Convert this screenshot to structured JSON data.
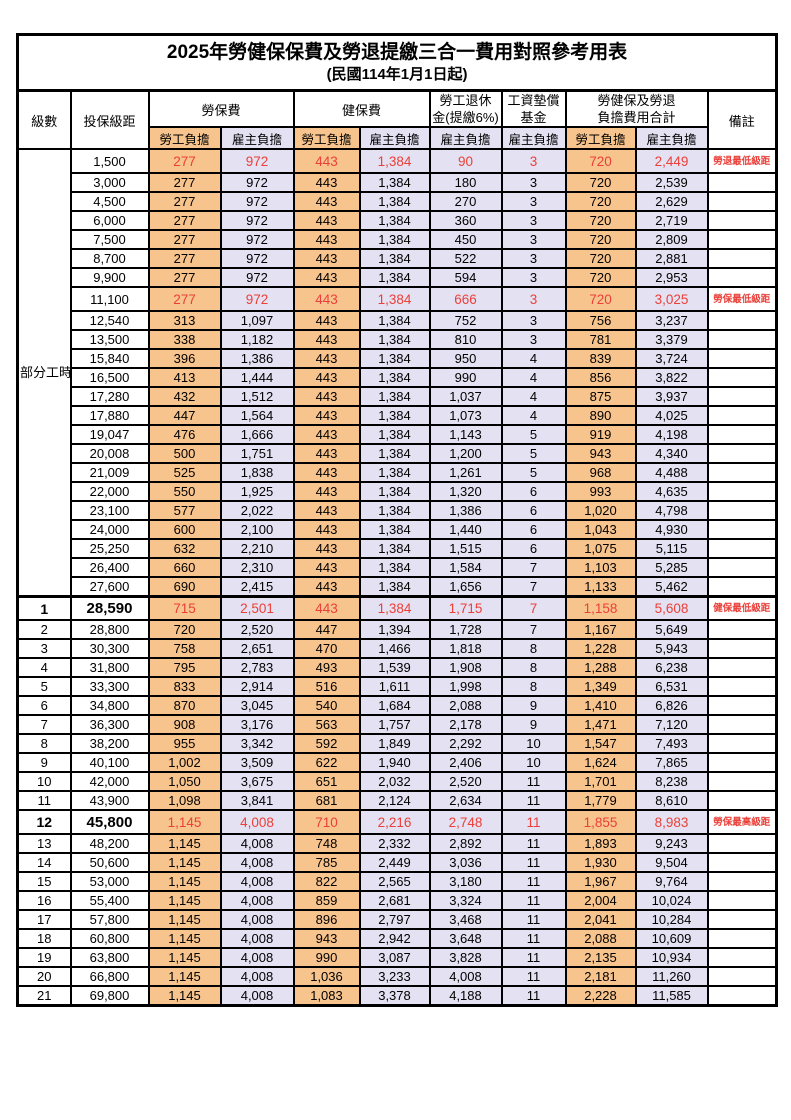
{
  "title": "2025年勞健保保費及勞退提繳三合一費用對照參考用表",
  "subtitle": "(民國114年1月1日起)",
  "colors": {
    "worker_bg": "#f8c48e",
    "employer_bg": "#e4e1f2",
    "highlight_red": "#ea4039",
    "border": "#000000"
  },
  "header": {
    "level": "級數",
    "bracket": "投保級距",
    "labor_insurance": "勞保費",
    "health_insurance": "健保費",
    "pension_line1": "勞工退休",
    "pension_line2": "金(提繳6%)",
    "wage_fund_line1": "工資墊償",
    "wage_fund_line2": "基金",
    "total_line1": "勞健保及勞退",
    "total_line2": "負擔費用合計",
    "remark": "備註",
    "worker": "勞工負擔",
    "employer": "雇主負擔"
  },
  "part_time_label": "部分工時",
  "part_time_rowspan": 23,
  "rows": [
    {
      "level": "",
      "bracket": "1,500",
      "cells": [
        "277",
        "972",
        "443",
        "1,384",
        "90",
        "3",
        "720",
        "2,449"
      ],
      "remark": "勞退最低級距",
      "red": true,
      "emph": false,
      "section": false
    },
    {
      "level": "",
      "bracket": "3,000",
      "cells": [
        "277",
        "972",
        "443",
        "1,384",
        "180",
        "3",
        "720",
        "2,539"
      ],
      "remark": "",
      "red": false,
      "emph": false,
      "section": false
    },
    {
      "level": "",
      "bracket": "4,500",
      "cells": [
        "277",
        "972",
        "443",
        "1,384",
        "270",
        "3",
        "720",
        "2,629"
      ],
      "remark": "",
      "red": false,
      "emph": false,
      "section": false
    },
    {
      "level": "",
      "bracket": "6,000",
      "cells": [
        "277",
        "972",
        "443",
        "1,384",
        "360",
        "3",
        "720",
        "2,719"
      ],
      "remark": "",
      "red": false,
      "emph": false,
      "section": false
    },
    {
      "level": "",
      "bracket": "7,500",
      "cells": [
        "277",
        "972",
        "443",
        "1,384",
        "450",
        "3",
        "720",
        "2,809"
      ],
      "remark": "",
      "red": false,
      "emph": false,
      "section": false
    },
    {
      "level": "",
      "bracket": "8,700",
      "cells": [
        "277",
        "972",
        "443",
        "1,384",
        "522",
        "3",
        "720",
        "2,881"
      ],
      "remark": "",
      "red": false,
      "emph": false,
      "section": false
    },
    {
      "level": "",
      "bracket": "9,900",
      "cells": [
        "277",
        "972",
        "443",
        "1,384",
        "594",
        "3",
        "720",
        "2,953"
      ],
      "remark": "",
      "red": false,
      "emph": false,
      "section": false
    },
    {
      "level": "",
      "bracket": "11,100",
      "cells": [
        "277",
        "972",
        "443",
        "1,384",
        "666",
        "3",
        "720",
        "3,025"
      ],
      "remark": "勞保最低級距",
      "red": true,
      "emph": false,
      "section": false
    },
    {
      "level": "",
      "bracket": "12,540",
      "cells": [
        "313",
        "1,097",
        "443",
        "1,384",
        "752",
        "3",
        "756",
        "3,237"
      ],
      "remark": "",
      "red": false,
      "emph": false,
      "section": false
    },
    {
      "level": "",
      "bracket": "13,500",
      "cells": [
        "338",
        "1,182",
        "443",
        "1,384",
        "810",
        "3",
        "781",
        "3,379"
      ],
      "remark": "",
      "red": false,
      "emph": false,
      "section": false
    },
    {
      "level": "",
      "bracket": "15,840",
      "cells": [
        "396",
        "1,386",
        "443",
        "1,384",
        "950",
        "4",
        "839",
        "3,724"
      ],
      "remark": "",
      "red": false,
      "emph": false,
      "section": false
    },
    {
      "level": "",
      "bracket": "16,500",
      "cells": [
        "413",
        "1,444",
        "443",
        "1,384",
        "990",
        "4",
        "856",
        "3,822"
      ],
      "remark": "",
      "red": false,
      "emph": false,
      "section": false
    },
    {
      "level": "",
      "bracket": "17,280",
      "cells": [
        "432",
        "1,512",
        "443",
        "1,384",
        "1,037",
        "4",
        "875",
        "3,937"
      ],
      "remark": "",
      "red": false,
      "emph": false,
      "section": false
    },
    {
      "level": "",
      "bracket": "17,880",
      "cells": [
        "447",
        "1,564",
        "443",
        "1,384",
        "1,073",
        "4",
        "890",
        "4,025"
      ],
      "remark": "",
      "red": false,
      "emph": false,
      "section": false
    },
    {
      "level": "",
      "bracket": "19,047",
      "cells": [
        "476",
        "1,666",
        "443",
        "1,384",
        "1,143",
        "5",
        "919",
        "4,198"
      ],
      "remark": "",
      "red": false,
      "emph": false,
      "section": false
    },
    {
      "level": "",
      "bracket": "20,008",
      "cells": [
        "500",
        "1,751",
        "443",
        "1,384",
        "1,200",
        "5",
        "943",
        "4,340"
      ],
      "remark": "",
      "red": false,
      "emph": false,
      "section": false
    },
    {
      "level": "",
      "bracket": "21,009",
      "cells": [
        "525",
        "1,838",
        "443",
        "1,384",
        "1,261",
        "5",
        "968",
        "4,488"
      ],
      "remark": "",
      "red": false,
      "emph": false,
      "section": false
    },
    {
      "level": "",
      "bracket": "22,000",
      "cells": [
        "550",
        "1,925",
        "443",
        "1,384",
        "1,320",
        "6",
        "993",
        "4,635"
      ],
      "remark": "",
      "red": false,
      "emph": false,
      "section": false
    },
    {
      "level": "",
      "bracket": "23,100",
      "cells": [
        "577",
        "2,022",
        "443",
        "1,384",
        "1,386",
        "6",
        "1,020",
        "4,798"
      ],
      "remark": "",
      "red": false,
      "emph": false,
      "section": false
    },
    {
      "level": "",
      "bracket": "24,000",
      "cells": [
        "600",
        "2,100",
        "443",
        "1,384",
        "1,440",
        "6",
        "1,043",
        "4,930"
      ],
      "remark": "",
      "red": false,
      "emph": false,
      "section": false
    },
    {
      "level": "",
      "bracket": "25,250",
      "cells": [
        "632",
        "2,210",
        "443",
        "1,384",
        "1,515",
        "6",
        "1,075",
        "5,115"
      ],
      "remark": "",
      "red": false,
      "emph": false,
      "section": false
    },
    {
      "level": "",
      "bracket": "26,400",
      "cells": [
        "660",
        "2,310",
        "443",
        "1,384",
        "1,584",
        "7",
        "1,103",
        "5,285"
      ],
      "remark": "",
      "red": false,
      "emph": false,
      "section": false
    },
    {
      "level": "",
      "bracket": "27,600",
      "cells": [
        "690",
        "2,415",
        "443",
        "1,384",
        "1,656",
        "7",
        "1,133",
        "5,462"
      ],
      "remark": "",
      "red": false,
      "emph": false,
      "section": false
    },
    {
      "level": "1",
      "bracket": "28,590",
      "cells": [
        "715",
        "2,501",
        "443",
        "1,384",
        "1,715",
        "7",
        "1,158",
        "5,608"
      ],
      "remark": "健保最低級距",
      "red": true,
      "emph": true,
      "section": true
    },
    {
      "level": "2",
      "bracket": "28,800",
      "cells": [
        "720",
        "2,520",
        "447",
        "1,394",
        "1,728",
        "7",
        "1,167",
        "5,649"
      ],
      "remark": "",
      "red": false,
      "emph": false,
      "section": false
    },
    {
      "level": "3",
      "bracket": "30,300",
      "cells": [
        "758",
        "2,651",
        "470",
        "1,466",
        "1,818",
        "8",
        "1,228",
        "5,943"
      ],
      "remark": "",
      "red": false,
      "emph": false,
      "section": false
    },
    {
      "level": "4",
      "bracket": "31,800",
      "cells": [
        "795",
        "2,783",
        "493",
        "1,539",
        "1,908",
        "8",
        "1,288",
        "6,238"
      ],
      "remark": "",
      "red": false,
      "emph": false,
      "section": false
    },
    {
      "level": "5",
      "bracket": "33,300",
      "cells": [
        "833",
        "2,914",
        "516",
        "1,611",
        "1,998",
        "8",
        "1,349",
        "6,531"
      ],
      "remark": "",
      "red": false,
      "emph": false,
      "section": false
    },
    {
      "level": "6",
      "bracket": "34,800",
      "cells": [
        "870",
        "3,045",
        "540",
        "1,684",
        "2,088",
        "9",
        "1,410",
        "6,826"
      ],
      "remark": "",
      "red": false,
      "emph": false,
      "section": false
    },
    {
      "level": "7",
      "bracket": "36,300",
      "cells": [
        "908",
        "3,176",
        "563",
        "1,757",
        "2,178",
        "9",
        "1,471",
        "7,120"
      ],
      "remark": "",
      "red": false,
      "emph": false,
      "section": false
    },
    {
      "level": "8",
      "bracket": "38,200",
      "cells": [
        "955",
        "3,342",
        "592",
        "1,849",
        "2,292",
        "10",
        "1,547",
        "7,493"
      ],
      "remark": "",
      "red": false,
      "emph": false,
      "section": false
    },
    {
      "level": "9",
      "bracket": "40,100",
      "cells": [
        "1,002",
        "3,509",
        "622",
        "1,940",
        "2,406",
        "10",
        "1,624",
        "7,865"
      ],
      "remark": "",
      "red": false,
      "emph": false,
      "section": false
    },
    {
      "level": "10",
      "bracket": "42,000",
      "cells": [
        "1,050",
        "3,675",
        "651",
        "2,032",
        "2,520",
        "11",
        "1,701",
        "8,238"
      ],
      "remark": "",
      "red": false,
      "emph": false,
      "section": false
    },
    {
      "level": "11",
      "bracket": "43,900",
      "cells": [
        "1,098",
        "3,841",
        "681",
        "2,124",
        "2,634",
        "11",
        "1,779",
        "8,610"
      ],
      "remark": "",
      "red": false,
      "emph": false,
      "section": false
    },
    {
      "level": "12",
      "bracket": "45,800",
      "cells": [
        "1,145",
        "4,008",
        "710",
        "2,216",
        "2,748",
        "11",
        "1,855",
        "8,983"
      ],
      "remark": "勞保最高級距",
      "red": true,
      "emph": true,
      "section": false
    },
    {
      "level": "13",
      "bracket": "48,200",
      "cells": [
        "1,145",
        "4,008",
        "748",
        "2,332",
        "2,892",
        "11",
        "1,893",
        "9,243"
      ],
      "remark": "",
      "red": false,
      "emph": false,
      "section": false
    },
    {
      "level": "14",
      "bracket": "50,600",
      "cells": [
        "1,145",
        "4,008",
        "785",
        "2,449",
        "3,036",
        "11",
        "1,930",
        "9,504"
      ],
      "remark": "",
      "red": false,
      "emph": false,
      "section": false
    },
    {
      "level": "15",
      "bracket": "53,000",
      "cells": [
        "1,145",
        "4,008",
        "822",
        "2,565",
        "3,180",
        "11",
        "1,967",
        "9,764"
      ],
      "remark": "",
      "red": false,
      "emph": false,
      "section": false
    },
    {
      "level": "16",
      "bracket": "55,400",
      "cells": [
        "1,145",
        "4,008",
        "859",
        "2,681",
        "3,324",
        "11",
        "2,004",
        "10,024"
      ],
      "remark": "",
      "red": false,
      "emph": false,
      "section": false
    },
    {
      "level": "17",
      "bracket": "57,800",
      "cells": [
        "1,145",
        "4,008",
        "896",
        "2,797",
        "3,468",
        "11",
        "2,041",
        "10,284"
      ],
      "remark": "",
      "red": false,
      "emph": false,
      "section": false
    },
    {
      "level": "18",
      "bracket": "60,800",
      "cells": [
        "1,145",
        "4,008",
        "943",
        "2,942",
        "3,648",
        "11",
        "2,088",
        "10,609"
      ],
      "remark": "",
      "red": false,
      "emph": false,
      "section": false
    },
    {
      "level": "19",
      "bracket": "63,800",
      "cells": [
        "1,145",
        "4,008",
        "990",
        "3,087",
        "3,828",
        "11",
        "2,135",
        "10,934"
      ],
      "remark": "",
      "red": false,
      "emph": false,
      "section": false
    },
    {
      "level": "20",
      "bracket": "66,800",
      "cells": [
        "1,145",
        "4,008",
        "1,036",
        "3,233",
        "4,008",
        "11",
        "2,181",
        "11,260"
      ],
      "remark": "",
      "red": false,
      "emph": false,
      "section": false
    },
    {
      "level": "21",
      "bracket": "69,800",
      "cells": [
        "1,145",
        "4,008",
        "1,083",
        "3,378",
        "4,188",
        "11",
        "2,228",
        "11,585"
      ],
      "remark": "",
      "red": false,
      "emph": false,
      "section": false
    }
  ]
}
